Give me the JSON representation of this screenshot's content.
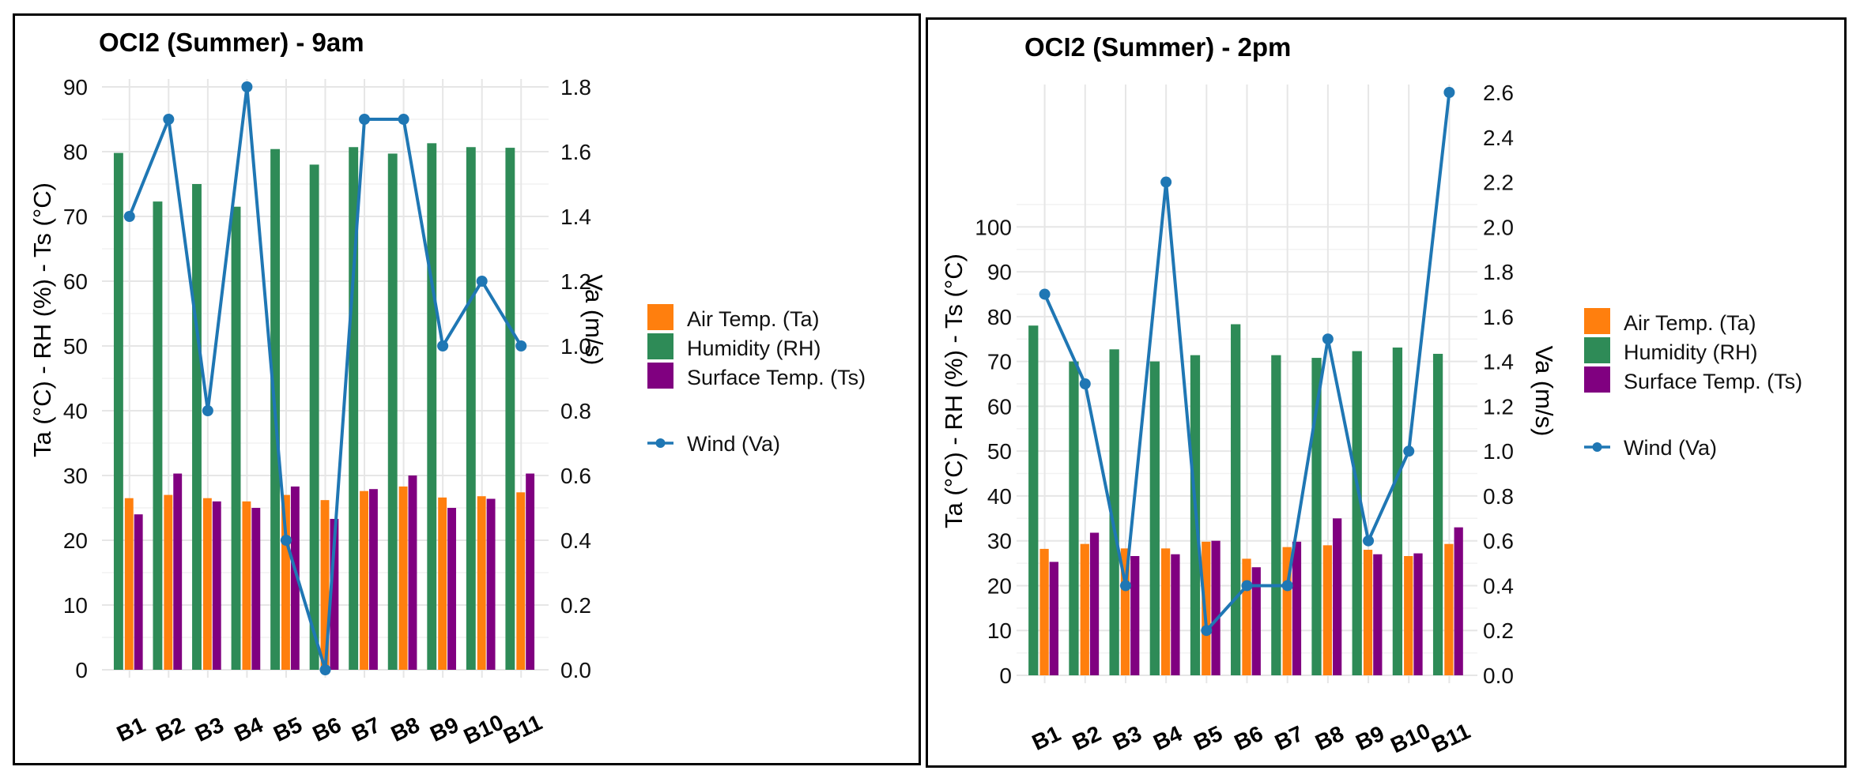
{
  "colors": {
    "air_temp": "#FF7F0E",
    "humidity": "#2E8B57",
    "surface_temp": "#800080",
    "wind": "#1F77B4",
    "grid": "#E6E6E6"
  },
  "chart_data": [
    {
      "type": "bar",
      "title": "OCI2 (Summer) - 9am",
      "categories": [
        "B1",
        "B2",
        "B3",
        "B4",
        "B5",
        "B6",
        "B7",
        "B8",
        "B9",
        "B10",
        "B11"
      ],
      "ylabel": "Ta (°C) - RH (%) - Ts (°C)",
      "y2label": "Va (m/s)",
      "ylim": [
        0,
        90
      ],
      "y2lim": [
        0,
        1.8
      ],
      "yticks": [
        "0",
        "10",
        "20",
        "30",
        "40",
        "50",
        "60",
        "70",
        "80",
        "90"
      ],
      "y2ticks": [
        "0.0",
        "0.2",
        "0.4",
        "0.6",
        "0.8",
        "1.0",
        "1.2",
        "1.4",
        "1.6",
        "1.8"
      ],
      "series": [
        {
          "name": "Humidity (RH)",
          "key": "humidity",
          "values": [
            79.8,
            72.3,
            75.0,
            71.5,
            80.4,
            78.0,
            80.7,
            79.7,
            81.3,
            80.7,
            80.6
          ]
        },
        {
          "name": "Air Temp. (Ta)",
          "key": "air_temp",
          "values": [
            26.5,
            27.0,
            26.5,
            26.0,
            27.0,
            26.2,
            27.6,
            28.3,
            26.6,
            26.8,
            27.4
          ]
        },
        {
          "name": "Surface Temp. (Ts)",
          "key": "surface_temp",
          "values": [
            24.0,
            30.3,
            26.0,
            25.0,
            28.3,
            23.3,
            27.9,
            30.0,
            25.0,
            26.4,
            30.3
          ]
        }
      ],
      "line_series": {
        "name": "Wind (Va)",
        "key": "wind",
        "values": [
          1.4,
          1.7,
          0.8,
          1.8,
          0.4,
          0.0,
          1.7,
          1.7,
          1.0,
          1.2,
          1.0
        ]
      },
      "legend": [
        "Air Temp. (Ta)",
        "Humidity (RH)",
        "Surface Temp. (Ts)",
        "Wind (Va)"
      ],
      "grid": true,
      "legend_position": "right"
    },
    {
      "type": "bar",
      "title": "OCI2 (Summer) - 2pm",
      "categories": [
        "B1",
        "B2",
        "B3",
        "B4",
        "B5",
        "B6",
        "B7",
        "B8",
        "B9",
        "B10",
        "B11"
      ],
      "ylabel": "Ta (°C) - RH (%) - Ts (°C)",
      "y2label": "Va (m/s)",
      "ylim": [
        0,
        130
      ],
      "y2lim": [
        0,
        2.6
      ],
      "yticks": [
        "0",
        "10",
        "20",
        "30",
        "40",
        "50",
        "60",
        "70",
        "80",
        "90",
        "100"
      ],
      "y2ticks": [
        "0.0",
        "0.2",
        "0.4",
        "0.6",
        "0.8",
        "1.0",
        "1.2",
        "1.4",
        "1.6",
        "1.8",
        "2.0",
        "2.2",
        "2.4",
        "2.6"
      ],
      "series": [
        {
          "name": "Humidity (RH)",
          "key": "humidity",
          "values": [
            78.0,
            70.0,
            72.7,
            70.0,
            71.4,
            78.3,
            71.4,
            70.8,
            72.3,
            73.1,
            71.7
          ]
        },
        {
          "name": "Air Temp. (Ta)",
          "key": "air_temp",
          "values": [
            28.2,
            29.3,
            28.3,
            28.3,
            29.8,
            26.0,
            28.6,
            29.0,
            28.0,
            26.6,
            29.3
          ]
        },
        {
          "name": "Surface Temp. (Ts)",
          "key": "surface_temp",
          "values": [
            25.3,
            31.8,
            26.6,
            27.0,
            30.0,
            24.1,
            29.8,
            35.0,
            27.0,
            27.2,
            33.0
          ]
        }
      ],
      "line_series": {
        "name": "Wind (Va)",
        "key": "wind",
        "values": [
          1.7,
          1.3,
          0.4,
          2.2,
          0.2,
          0.4,
          0.4,
          1.5,
          0.6,
          1.0,
          2.6
        ]
      },
      "legend": [
        "Air Temp. (Ta)",
        "Humidity (RH)",
        "Surface Temp. (Ts)",
        "Wind (Va)"
      ],
      "grid": true,
      "legend_position": "right"
    }
  ]
}
